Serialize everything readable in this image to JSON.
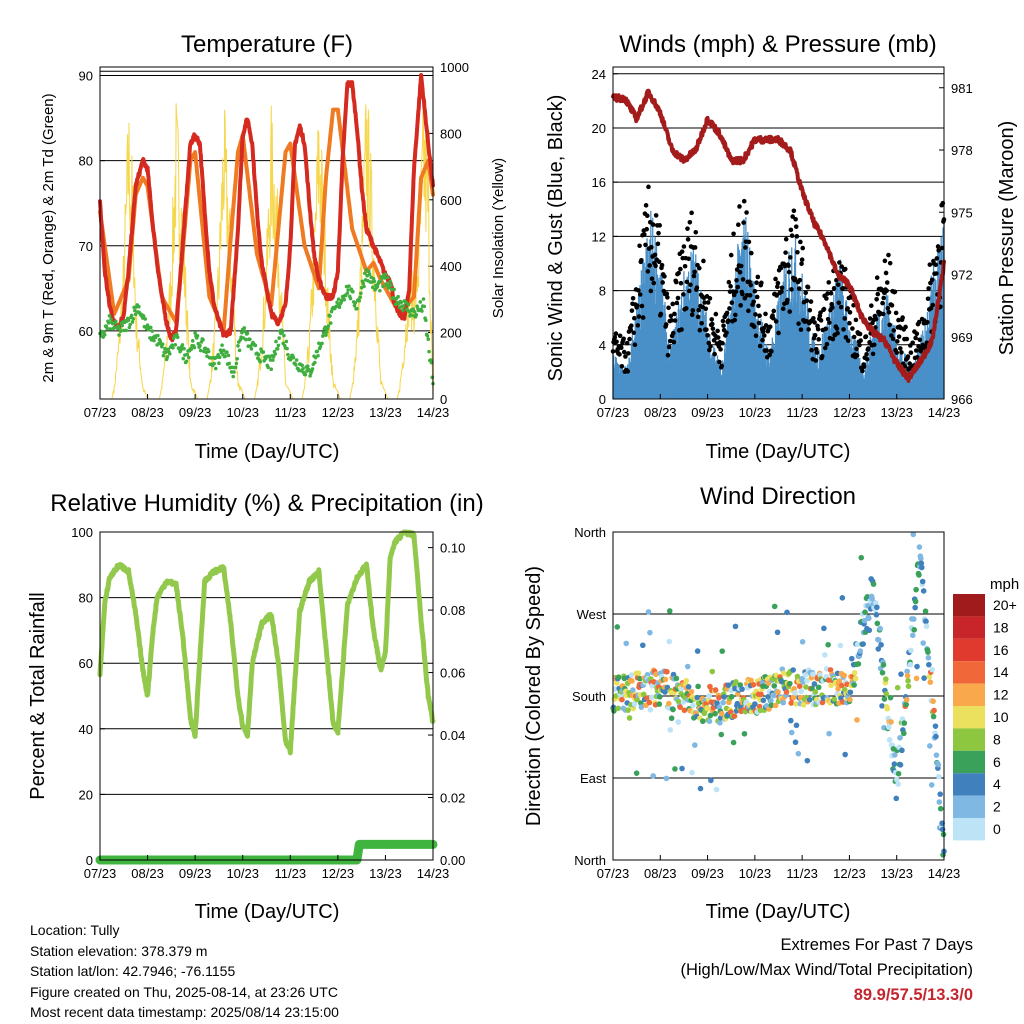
{
  "colors": {
    "t2m": "#d42a20",
    "t9m": "#f07a22",
    "td": "#3fae3f",
    "solar": "#f6d64a",
    "wind": "#4a90c8",
    "gust": "#000000",
    "pressure": "#a31b1b",
    "rh": "#92c94c",
    "precip": "#3fb53f"
  },
  "footer": {
    "location": "Location: Tully",
    "elevation": "Station elevation: 378.379 m",
    "latlon": "Station lat/lon: 42.7946; -76.1155",
    "created": "Figure created on Thu, 2025-08-14, at 23:26 UTC",
    "recent": "Most recent data timestamp: 2025/08/14 23:15:00"
  },
  "extremes": {
    "title": "Extremes For Past 7 Days",
    "subtitle": "(High/Low/Max Wind/Total Precipitation)",
    "values": "89.9/57.5/13.3/0"
  },
  "chart_data": [
    {
      "type": "line",
      "title": "Temperature (F)",
      "xlabel": "Time (Day/UTC)",
      "ylabel": "2m & 9m T (Red, Orange) & 2m Td (Green)",
      "y2label": "Solar Insolation (Yellow)",
      "x_ticks": [
        "07/23",
        "08/23",
        "09/23",
        "10/23",
        "11/23",
        "12/23",
        "13/23",
        "14/23"
      ],
      "ylim": [
        52,
        91
      ],
      "y_ticks": [
        60,
        70,
        80,
        90
      ],
      "y2lim": [
        0,
        1000
      ],
      "y2_ticks": [
        0,
        200,
        400,
        600,
        800,
        1000
      ],
      "grid": true,
      "series": [
        {
          "name": "2m T",
          "x": [
            0,
            0.1,
            0.2,
            0.3,
            0.4,
            0.5,
            0.6,
            0.75,
            0.9,
            1.0,
            1.1,
            1.2,
            1.3,
            1.4,
            1.5,
            1.6,
            1.75,
            1.9,
            2.0,
            2.1,
            2.2,
            2.3,
            2.4,
            2.5,
            2.6,
            2.75,
            2.9,
            3.0,
            3.1,
            3.2,
            3.3,
            3.4,
            3.5,
            3.6,
            3.75,
            3.9,
            4.0,
            4.1,
            4.2,
            4.3,
            4.4,
            4.5,
            4.6,
            4.75,
            4.9,
            5.0,
            5.1,
            5.2,
            5.3,
            5.4,
            5.5,
            5.6,
            5.75,
            5.9,
            6.0,
            6.1,
            6.2,
            6.3,
            6.4,
            6.5,
            6.6,
            6.75,
            6.9,
            7.0
          ],
          "y": [
            75,
            67,
            63,
            61,
            60.5,
            62,
            67,
            77,
            80,
            79,
            73,
            68,
            64,
            61,
            59,
            60,
            71,
            82,
            83,
            82,
            74,
            67,
            63,
            61,
            59.5,
            60,
            72,
            83,
            85,
            82,
            74,
            68,
            65,
            62,
            61,
            63,
            70,
            82,
            84,
            82,
            75,
            69,
            66,
            64,
            64,
            67,
            80,
            89,
            89,
            84,
            77,
            72,
            70,
            68,
            66.5,
            66,
            63,
            62,
            61.5,
            65,
            79,
            90,
            82,
            77
          ]
        },
        {
          "name": "9m T",
          "x": [
            0,
            0.3,
            0.6,
            0.75,
            0.9,
            1.0,
            1.3,
            1.6,
            1.75,
            1.9,
            2.0,
            2.3,
            2.6,
            2.75,
            2.9,
            3.0,
            3.3,
            3.6,
            3.75,
            3.9,
            4.0,
            4.3,
            4.6,
            4.75,
            4.9,
            5.0,
            5.3,
            5.6,
            5.75,
            5.9,
            6.0,
            6.3,
            6.6,
            6.75,
            6.9,
            7.0
          ],
          "y": [
            74,
            62,
            66,
            76,
            78,
            77,
            64,
            61,
            70,
            80,
            81,
            64,
            60,
            71,
            81,
            83,
            69,
            63,
            72,
            81,
            82,
            70,
            65,
            78,
            86,
            86,
            72,
            67,
            68,
            66,
            65,
            62,
            64,
            78,
            80,
            76
          ]
        },
        {
          "name": "2m Td",
          "x": [
            0,
            0.2,
            0.4,
            0.6,
            0.8,
            1.0,
            1.2,
            1.4,
            1.6,
            1.8,
            2.0,
            2.2,
            2.4,
            2.6,
            2.8,
            3.0,
            3.2,
            3.4,
            3.6,
            3.8,
            4.0,
            4.2,
            4.4,
            4.6,
            4.8,
            5.0,
            5.2,
            5.4,
            5.6,
            5.8,
            6.0,
            6.2,
            6.4,
            6.6,
            6.8,
            7.0
          ],
          "y": [
            59,
            61,
            60,
            61,
            63,
            60,
            59,
            57,
            59,
            57,
            59,
            58,
            56,
            58,
            55,
            60,
            58,
            57,
            56,
            60,
            57,
            56,
            55,
            58,
            61,
            63,
            65,
            63,
            67,
            65,
            66,
            64,
            63,
            62,
            63,
            54
          ]
        },
        {
          "name": "Solar",
          "x": [
            0,
            0.25,
            0.3,
            0.4,
            0.5,
            0.6,
            0.7,
            0.75,
            0.9,
            1.0,
            1.05,
            1.25,
            1.3,
            1.4,
            1.5,
            1.6,
            1.7,
            1.8,
            1.9,
            2.05,
            2.25,
            2.3,
            2.4,
            2.5,
            2.6,
            2.7,
            2.8,
            2.9,
            3.05,
            3.25,
            3.3,
            3.4,
            3.5,
            3.6,
            3.7,
            3.8,
            3.9,
            4.05,
            4.25,
            4.3,
            4.4,
            4.5,
            4.6,
            4.7,
            4.8,
            4.9,
            5.05,
            5.25,
            5.3,
            5.4,
            5.5,
            5.6,
            5.7,
            5.8,
            5.9,
            6.05,
            6.25,
            6.3,
            6.4,
            6.5,
            6.6,
            6.7,
            6.8,
            6.9,
            7.0
          ],
          "y": [
            0,
            0,
            40,
            200,
            450,
            880,
            650,
            300,
            40,
            0,
            0,
            0,
            40,
            200,
            450,
            880,
            700,
            400,
            60,
            0,
            0,
            40,
            200,
            450,
            880,
            650,
            350,
            60,
            0,
            0,
            40,
            200,
            450,
            850,
            700,
            380,
            60,
            0,
            0,
            40,
            200,
            500,
            900,
            650,
            300,
            60,
            0,
            0,
            40,
            220,
            500,
            950,
            700,
            380,
            60,
            0,
            0,
            40,
            200,
            400,
            350,
            500,
            900,
            700,
            0
          ]
        }
      ]
    },
    {
      "type": "scatter",
      "title": "Winds (mph) & Pressure (mb)",
      "xlabel": "Time (Day/UTC)",
      "ylabel": "Sonic Wind & Gust (Blue, Black)",
      "y2label": "Station Pressure (Maroon)",
      "x_ticks": [
        "07/23",
        "08/23",
        "09/23",
        "10/23",
        "11/23",
        "12/23",
        "13/23",
        "14/23"
      ],
      "ylim": [
        0,
        24.5
      ],
      "y_ticks": [
        0,
        4,
        8,
        12,
        16,
        20,
        24
      ],
      "y2lim": [
        966,
        982
      ],
      "y2_ticks": [
        966,
        969,
        972,
        975,
        978,
        981
      ],
      "grid": true,
      "series": [
        {
          "name": "Wind envelope",
          "x": [
            0,
            0.3,
            0.6,
            0.8,
            1.0,
            1.2,
            1.5,
            1.7,
            2.0,
            2.3,
            2.6,
            2.8,
            3.0,
            3.3,
            3.6,
            3.8,
            4.0,
            4.3,
            4.6,
            4.8,
            5.0,
            5.3,
            5.6,
            5.8,
            6.0,
            6.3,
            6.6,
            6.8,
            7.0
          ],
          "y": [
            3,
            2,
            8,
            12,
            9,
            3,
            8,
            10,
            5,
            2,
            9,
            12,
            7,
            3,
            8,
            11,
            8,
            3,
            6,
            9,
            5,
            2,
            6,
            7,
            4,
            2,
            5,
            9,
            12
          ]
        },
        {
          "name": "Gust envelope",
          "x": [
            0,
            0.3,
            0.6,
            0.8,
            1.0,
            1.2,
            1.5,
            1.7,
            2.0,
            2.3,
            2.6,
            2.8,
            3.0,
            3.3,
            3.6,
            3.8,
            4.0,
            4.3,
            4.6,
            4.8,
            5.0,
            5.3,
            5.6,
            5.8,
            6.0,
            6.3,
            6.6,
            6.8,
            7.0
          ],
          "y": [
            5,
            4,
            12,
            16,
            12,
            6,
            12,
            14,
            8,
            5,
            13,
            15,
            10,
            6,
            12,
            14,
            11,
            5,
            9,
            11,
            8,
            4,
            9,
            11,
            7,
            4,
            7,
            12,
            16
          ]
        },
        {
          "name": "Pressure",
          "x": [
            0,
            0.25,
            0.5,
            0.75,
            1.0,
            1.25,
            1.5,
            1.75,
            2.0,
            2.25,
            2.5,
            2.75,
            3.0,
            3.25,
            3.5,
            3.75,
            4.0,
            4.25,
            4.5,
            4.75,
            5.0,
            5.25,
            5.5,
            5.75,
            6.0,
            6.25,
            6.5,
            6.75,
            7.0
          ],
          "y": [
            980.5,
            980.5,
            979.5,
            980.8,
            979.8,
            978,
            977.5,
            978,
            979.5,
            978.8,
            977.5,
            977.5,
            978.5,
            978.5,
            978.5,
            978,
            976,
            974.5,
            973.5,
            972,
            971.5,
            970,
            969.2,
            968.8,
            967.7,
            967,
            967.8,
            968.8,
            972.5
          ]
        }
      ]
    },
    {
      "type": "line",
      "title": "Relative Humidity (%) & Precipitation (in)",
      "xlabel": "Time (Day/UTC)",
      "ylabel": "Percent & Total Rainfall",
      "x_ticks": [
        "07/23",
        "08/23",
        "09/23",
        "10/23",
        "11/23",
        "12/23",
        "13/23",
        "14/23"
      ],
      "ylim": [
        0,
        100
      ],
      "y_ticks": [
        0,
        20,
        40,
        60,
        80,
        100
      ],
      "y2lim": [
        0,
        0.105
      ],
      "y2_ticks": [
        "0.00",
        "0.02",
        "0.04",
        "0.06",
        "0.08",
        "0.10"
      ],
      "grid": true,
      "series": [
        {
          "name": "RH",
          "x": [
            0,
            0.1,
            0.2,
            0.4,
            0.6,
            0.75,
            0.9,
            1.0,
            1.1,
            1.2,
            1.4,
            1.6,
            1.75,
            1.9,
            2.0,
            2.1,
            2.2,
            2.4,
            2.6,
            2.75,
            2.9,
            3.0,
            3.1,
            3.2,
            3.4,
            3.6,
            3.75,
            3.9,
            4.0,
            4.1,
            4.2,
            4.4,
            4.6,
            4.75,
            4.9,
            5.0,
            5.1,
            5.2,
            5.4,
            5.6,
            5.75,
            5.9,
            6.0,
            6.1,
            6.2,
            6.4,
            6.6,
            6.75,
            6.9,
            7.0
          ],
          "y": [
            57,
            78,
            86,
            90,
            88,
            75,
            58,
            50,
            68,
            80,
            85,
            84,
            67,
            43,
            38,
            62,
            85,
            88,
            89,
            72,
            50,
            41,
            38,
            60,
            72,
            75,
            60,
            36,
            33,
            55,
            76,
            85,
            88,
            65,
            42,
            39,
            58,
            78,
            86,
            90,
            70,
            58,
            63,
            92,
            97,
            100,
            99,
            73,
            50,
            42
          ]
        },
        {
          "name": "Precipitation",
          "x": [
            0,
            5.4,
            5.45,
            7.0
          ],
          "y": [
            0,
            0,
            0.005,
            0.005
          ]
        }
      ]
    },
    {
      "type": "scatter",
      "title": "Wind Direction",
      "xlabel": "Time (Day/UTC)",
      "ylabel": "Direction (Colored By Speed)",
      "x_ticks": [
        "07/23",
        "08/23",
        "09/23",
        "10/23",
        "11/23",
        "12/23",
        "13/23",
        "14/23"
      ],
      "y_ticks": [
        "North",
        "East",
        "South",
        "West",
        "North"
      ],
      "ylim": [
        0,
        360
      ],
      "legend": {
        "title": "mph",
        "labels": [
          "20+",
          "18",
          "16",
          "14",
          "12",
          "10",
          "8",
          "6",
          "4",
          "2",
          "0"
        ],
        "colors": [
          "#a01c1c",
          "#c8252a",
          "#e0392e",
          "#f0683a",
          "#f9a94b",
          "#ebe15e",
          "#8dc63f",
          "#3aa15a",
          "#3f80bd",
          "#7fb8e3",
          "#bde3f7"
        ]
      },
      "series": [
        {
          "name": "Direction",
          "x": [
            0,
            1,
            2,
            3,
            4,
            5,
            5.5,
            6,
            6.5,
            7
          ],
          "y": [
            180,
            190,
            170,
            180,
            190,
            190,
            300,
            80,
            340,
            10
          ]
        }
      ]
    }
  ]
}
